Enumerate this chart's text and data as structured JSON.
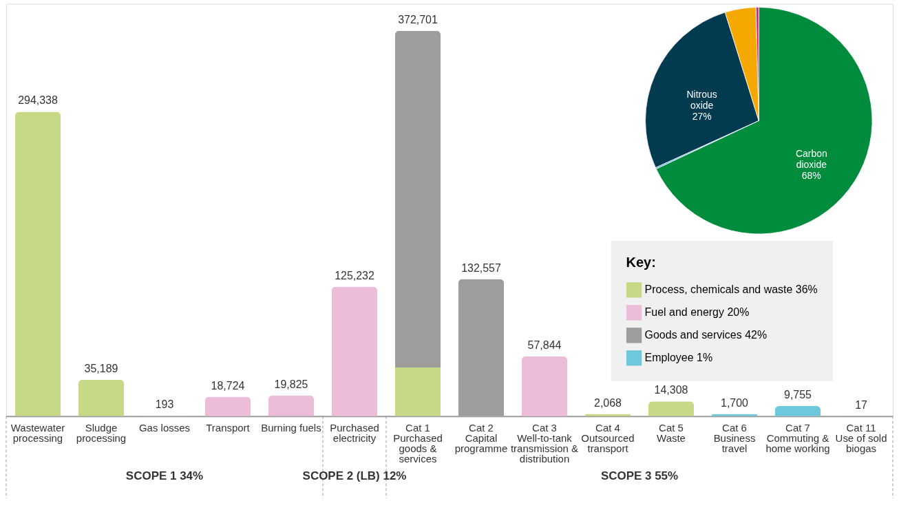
{
  "chart_data": [
    {
      "type": "bar",
      "stacked": true,
      "categories": [
        "Wastewater processing",
        "Sludge processing",
        "Gas losses",
        "Transport",
        "Burning fuels",
        "Purchased electricity",
        "Cat 1 Purchased goods & services",
        "Cat 2 Capital programme",
        "Cat 3 Well-to-tank transmission & distribution",
        "Cat 4 Outsourced transport",
        "Cat 5 Waste",
        "Cat 6 Business travel",
        "Cat 7 Commuting & home working",
        "Cat 11 Use of sold biogas"
      ],
      "series": [
        {
          "name": "Process, chemicals and waste 36%",
          "color": "#c5d986",
          "values": [
            294338,
            35189,
            193,
            null,
            null,
            null,
            47000,
            null,
            null,
            2068,
            14308,
            null,
            null,
            null
          ],
          "value_labels": [
            "294,338",
            "35,189",
            "193",
            null,
            null,
            null,
            null,
            null,
            null,
            "2,068",
            "14,308",
            null,
            null,
            null
          ]
        },
        {
          "name": "Fuel and energy 20%",
          "color": "#ecbcd8",
          "values": [
            null,
            null,
            null,
            18724,
            19825,
            125232,
            null,
            null,
            57844,
            null,
            null,
            null,
            null,
            17
          ],
          "value_labels": [
            null,
            null,
            null,
            "18,724",
            "19,825",
            "125,232",
            null,
            null,
            "57,844",
            null,
            null,
            null,
            null,
            "17"
          ]
        },
        {
          "name": "Goods and services 42%",
          "color": "#9d9d9b",
          "values": [
            null,
            null,
            null,
            null,
            null,
            null,
            325701,
            132557,
            null,
            null,
            null,
            null,
            null,
            null
          ],
          "value_labels": [
            null,
            null,
            null,
            null,
            null,
            null,
            null,
            "132,557",
            null,
            null,
            null,
            null,
            null,
            null
          ]
        },
        {
          "name": "Employee 1%",
          "color": "#6ec8dc",
          "values": [
            null,
            null,
            null,
            null,
            null,
            null,
            null,
            null,
            null,
            null,
            null,
            1700,
            9755,
            null
          ],
          "value_labels": [
            null,
            null,
            null,
            null,
            null,
            null,
            null,
            null,
            null,
            null,
            null,
            "1,700",
            "9,755",
            null
          ]
        }
      ],
      "totals": [
        null,
        null,
        null,
        null,
        null,
        null,
        "372,701",
        null,
        null,
        null,
        null,
        null,
        null,
        null
      ],
      "legend_title": "Key:",
      "legend": "right",
      "annotations": [
        "SCOPE 1 34%",
        "SCOPE 2 (LB) 12%",
        "SCOPE 3 55%"
      ]
    },
    {
      "type": "pie",
      "categories": [
        "Carbon dioxide",
        null,
        "Nitrous oxide",
        null,
        null
      ],
      "values": [
        68,
        0.2,
        27,
        4.4,
        0.4
      ],
      "value_labels": [
        "68%",
        null,
        "27%",
        null,
        null
      ],
      "colors": [
        "#008c3c",
        "#3fa9d6",
        "#023a50",
        "#f5a800",
        "#d6287a"
      ]
    }
  ]
}
